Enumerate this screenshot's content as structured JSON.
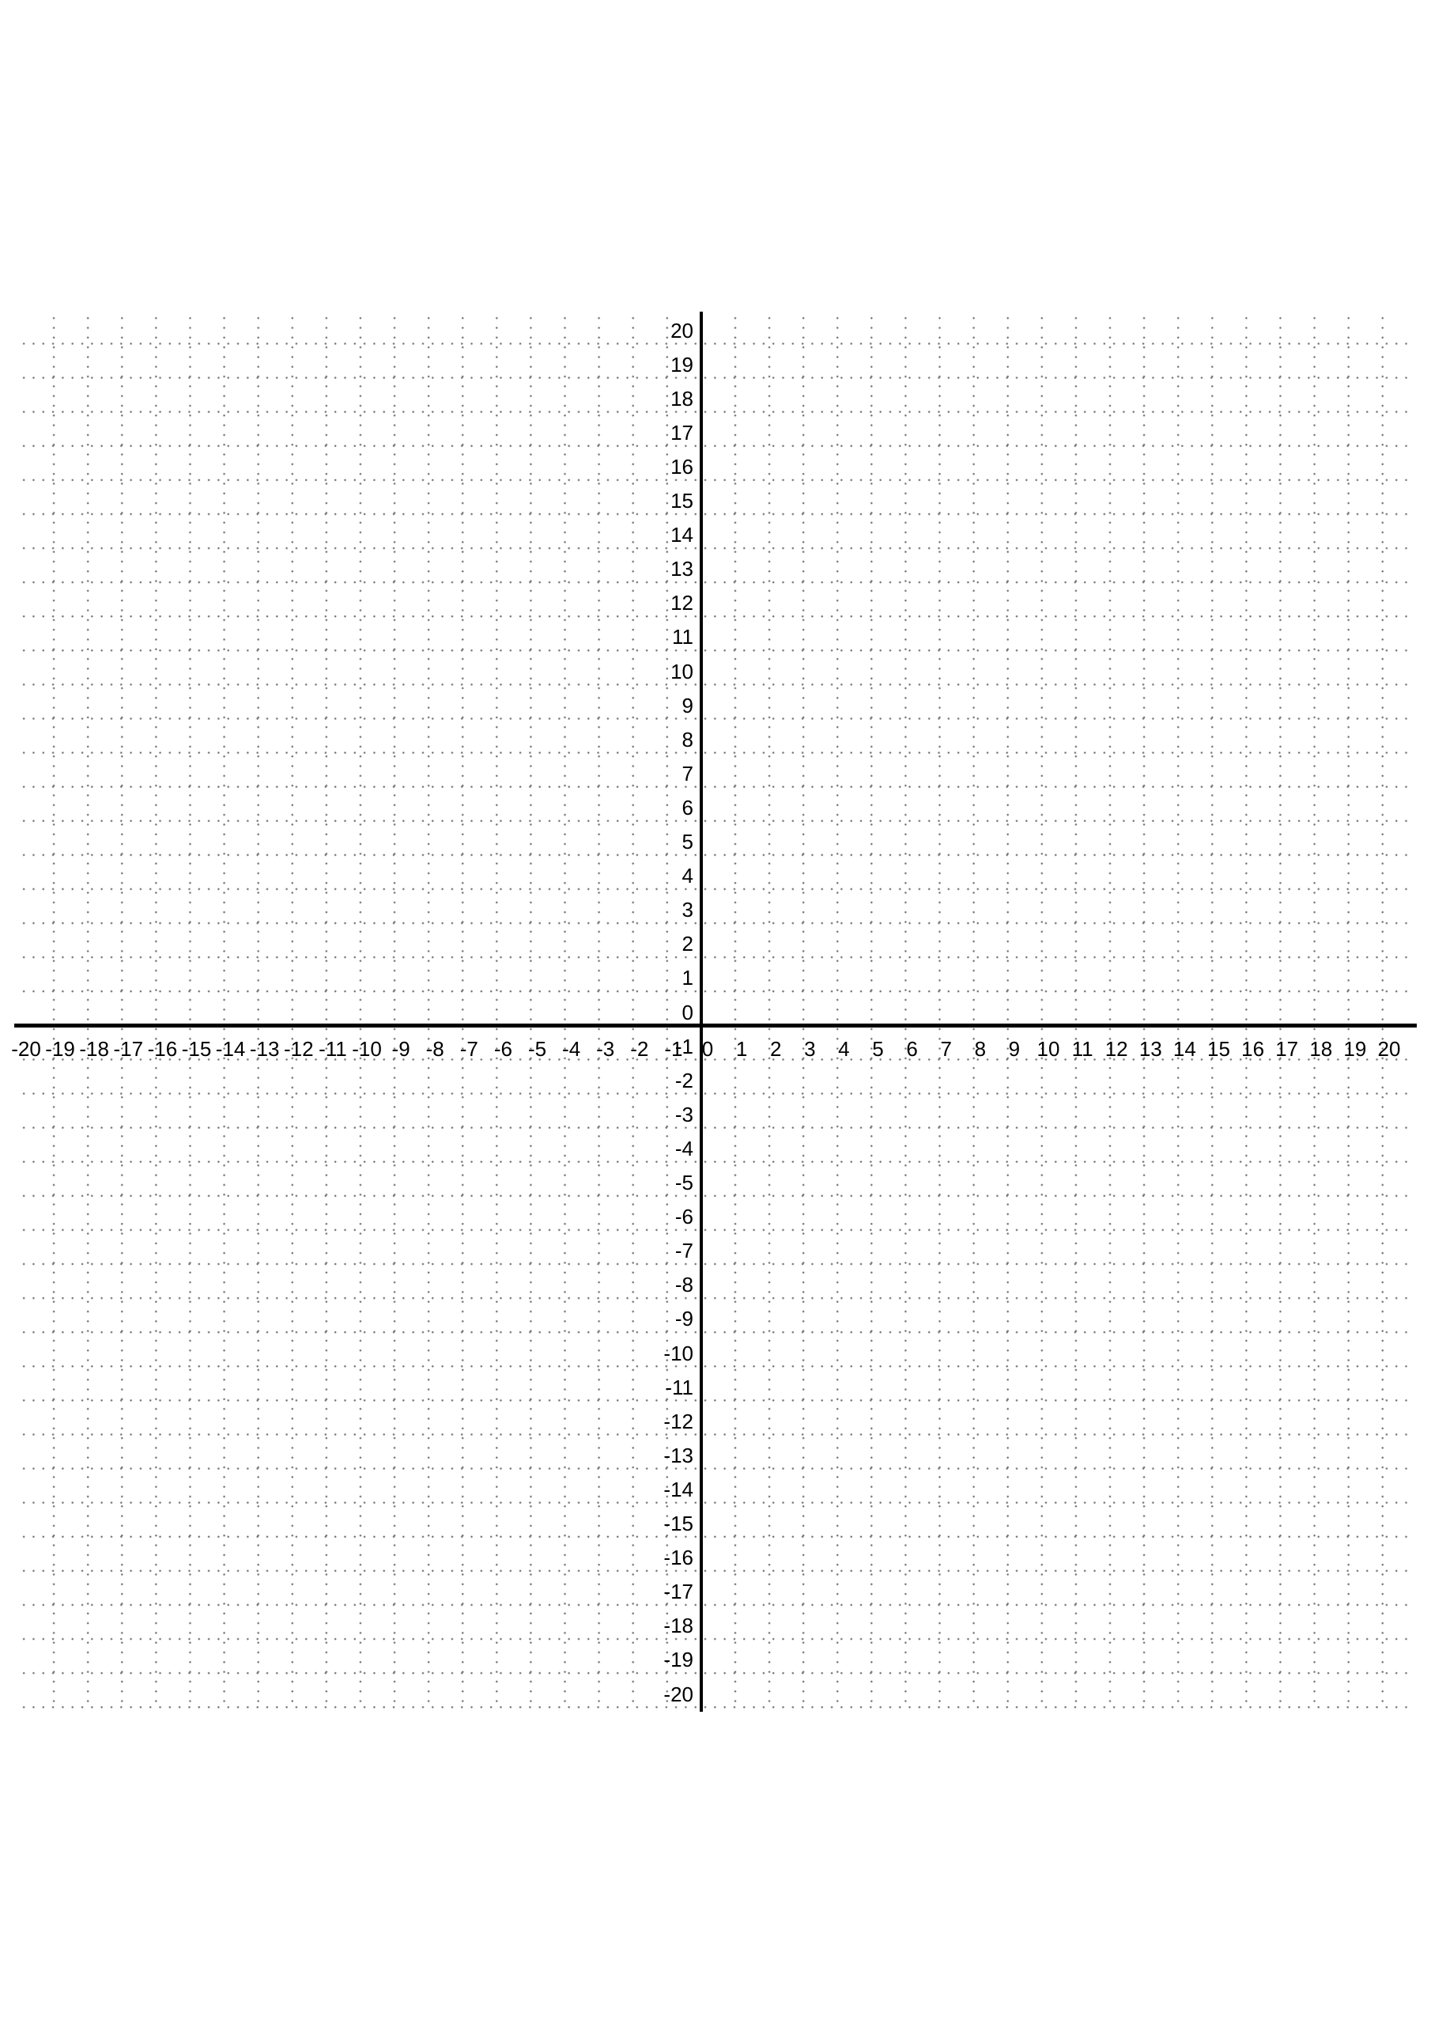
{
  "chart_data": {
    "type": "scatter",
    "title": "",
    "series": [],
    "grid": {
      "style": "dotted",
      "dot_color": "#6b6b6b"
    },
    "axis_color": "#000000",
    "background_color": "#ffffff",
    "x_axis": {
      "label": "",
      "min": -20,
      "max": 20,
      "tick_step": 1,
      "tick_labels": [
        "-20",
        "-19",
        "-18",
        "-17",
        "-16",
        "-15",
        "-14",
        "-13",
        "-12",
        "-11",
        "-10",
        "-9",
        "-8",
        "-7",
        "-6",
        "-5",
        "-4",
        "-3",
        "-2",
        "-1",
        "0",
        "1",
        "2",
        "3",
        "4",
        "5",
        "6",
        "7",
        "8",
        "9",
        "10",
        "11",
        "12",
        "13",
        "14",
        "15",
        "16",
        "17",
        "18",
        "19",
        "20"
      ]
    },
    "y_axis": {
      "label": "",
      "min": -20,
      "max": 20,
      "tick_step": 1,
      "tick_labels": [
        "20",
        "19",
        "18",
        "17",
        "16",
        "15",
        "14",
        "13",
        "12",
        "11",
        "10",
        "9",
        "8",
        "7",
        "6",
        "5",
        "4",
        "3",
        "2",
        "1",
        "0",
        "-1",
        "-2",
        "-3",
        "-4",
        "-5",
        "-6",
        "-7",
        "-8",
        "-9",
        "-10",
        "-11",
        "-12",
        "-13",
        "-14",
        "-15",
        "-16",
        "-17",
        "-18",
        "-19",
        "-20"
      ]
    }
  }
}
